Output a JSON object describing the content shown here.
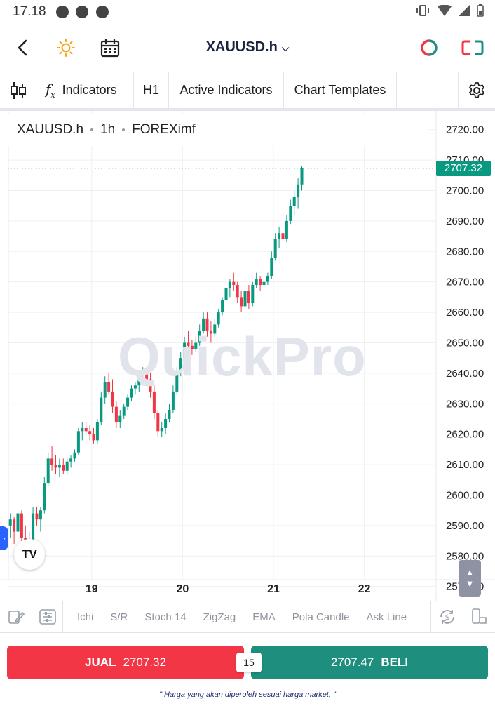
{
  "status_bar": {
    "time": "17.18"
  },
  "header": {
    "symbol": "XAUUSD.h",
    "icons": [
      "back-arrow-icon",
      "sun-icon",
      "calendar-icon",
      "chevron-down-icon",
      "trade-ring-icon",
      "layout-toggle-icon"
    ]
  },
  "toolbar": {
    "indicators_label": "Indicators",
    "timeframe": "H1",
    "active_indicators_label": "Active Indicators",
    "chart_templates_label": "Chart Templates"
  },
  "chart": {
    "legend": {
      "symbol": "XAUUSD.h",
      "interval": "1h",
      "source": "FOREXimf"
    },
    "watermark": "QuickPro",
    "current_price_label": "2707.32",
    "logo_text": "TV"
  },
  "indicator_bar": {
    "items": [
      "Ichi",
      "S/R",
      "Stoch 14",
      "ZigZag",
      "EMA",
      "Pola Candle",
      "Ask Line"
    ]
  },
  "trade": {
    "sell_label": "JUAL",
    "sell_price": "2707.32",
    "spread": "15",
    "buy_price": "2707.47",
    "buy_label": "BELI",
    "note": "\" Harga yang akan diperoleh sesuai harga market. \""
  },
  "colors": {
    "up": "#089981",
    "down": "#f23645",
    "sell": "#f23645",
    "buy": "#1e8f7e",
    "title": "#1a2340"
  },
  "chart_data": {
    "type": "candlestick",
    "ylim": [
      2566,
      2726
    ],
    "y_ticks": [
      "2720.00",
      "2710.00",
      "2700.00",
      "2690.00",
      "2680.00",
      "2670.00",
      "2660.00",
      "2650.00",
      "2640.00",
      "2630.00",
      "2620.00",
      "2610.00",
      "2600.00",
      "2590.00",
      "2580.00",
      "2570.00"
    ],
    "y_tick_values": [
      2720,
      2710,
      2700,
      2690,
      2680,
      2670,
      2660,
      2650,
      2640,
      2630,
      2620,
      2610,
      2600,
      2590,
      2580,
      2570
    ],
    "x_ticks": [
      "19",
      "20",
      "21",
      "22"
    ],
    "x_tick_bar_index": [
      22,
      46,
      70,
      94
    ],
    "last_price": 2707.32,
    "candles": [
      [
        2590,
        2594,
        2586,
        2592
      ],
      [
        2592,
        2593,
        2584,
        2588
      ],
      [
        2588,
        2596,
        2587,
        2594
      ],
      [
        2594,
        2595,
        2583,
        2586
      ],
      [
        2586,
        2590,
        2580,
        2582
      ],
      [
        2582,
        2588,
        2581,
        2585
      ],
      [
        2585,
        2596,
        2584,
        2594
      ],
      [
        2594,
        2596,
        2590,
        2592
      ],
      [
        2592,
        2596,
        2588,
        2595
      ],
      [
        2595,
        2606,
        2594,
        2604
      ],
      [
        2604,
        2614,
        2603,
        2612
      ],
      [
        2612,
        2616,
        2608,
        2610
      ],
      [
        2610,
        2613,
        2607,
        2609
      ],
      [
        2609,
        2612,
        2606,
        2610
      ],
      [
        2610,
        2612,
        2607,
        2608
      ],
      [
        2608,
        2612,
        2607,
        2611
      ],
      [
        2611,
        2613,
        2609,
        2612
      ],
      [
        2612,
        2615,
        2611,
        2614
      ],
      [
        2614,
        2622,
        2613,
        2621
      ],
      [
        2621,
        2624,
        2618,
        2622
      ],
      [
        2622,
        2624,
        2620,
        2621
      ],
      [
        2621,
        2623,
        2618,
        2620
      ],
      [
        2620,
        2622,
        2617,
        2618
      ],
      [
        2618,
        2625,
        2617,
        2624
      ],
      [
        2624,
        2634,
        2623,
        2632
      ],
      [
        2632,
        2639,
        2630,
        2637
      ],
      [
        2637,
        2640,
        2633,
        2634
      ],
      [
        2634,
        2638,
        2627,
        2629
      ],
      [
        2629,
        2631,
        2622,
        2624
      ],
      [
        2624,
        2628,
        2622,
        2626
      ],
      [
        2626,
        2630,
        2625,
        2629
      ],
      [
        2629,
        2633,
        2628,
        2632
      ],
      [
        2632,
        2636,
        2631,
        2635
      ],
      [
        2635,
        2637,
        2633,
        2636
      ],
      [
        2636,
        2640,
        2634,
        2638
      ],
      [
        2638,
        2642,
        2636,
        2640
      ],
      [
        2640,
        2641,
        2636,
        2638
      ],
      [
        2638,
        2640,
        2632,
        2634
      ],
      [
        2634,
        2636,
        2625,
        2627
      ],
      [
        2627,
        2628,
        2619,
        2621
      ],
      [
        2621,
        2624,
        2619,
        2622
      ],
      [
        2622,
        2627,
        2620,
        2625
      ],
      [
        2625,
        2630,
        2624,
        2628
      ],
      [
        2628,
        2636,
        2627,
        2634
      ],
      [
        2634,
        2642,
        2633,
        2640
      ],
      [
        2640,
        2647,
        2639,
        2645
      ],
      [
        2645,
        2652,
        2644,
        2650
      ],
      [
        2650,
        2654,
        2647,
        2649
      ],
      [
        2649,
        2651,
        2646,
        2648
      ],
      [
        2648,
        2652,
        2647,
        2650
      ],
      [
        2650,
        2656,
        2649,
        2654
      ],
      [
        2654,
        2660,
        2653,
        2658
      ],
      [
        2658,
        2660,
        2652,
        2654
      ],
      [
        2654,
        2657,
        2650,
        2653
      ],
      [
        2653,
        2658,
        2652,
        2656
      ],
      [
        2656,
        2661,
        2655,
        2660
      ],
      [
        2660,
        2665,
        2659,
        2664
      ],
      [
        2664,
        2670,
        2663,
        2668
      ],
      [
        2668,
        2671,
        2665,
        2670
      ],
      [
        2670,
        2673,
        2667,
        2669
      ],
      [
        2669,
        2670,
        2663,
        2665
      ],
      [
        2665,
        2667,
        2660,
        2662
      ],
      [
        2662,
        2668,
        2661,
        2667
      ],
      [
        2667,
        2669,
        2661,
        2663
      ],
      [
        2663,
        2670,
        2662,
        2669
      ],
      [
        2669,
        2673,
        2668,
        2671
      ],
      [
        2671,
        2672,
        2667,
        2669
      ],
      [
        2669,
        2671,
        2668,
        2670
      ],
      [
        2670,
        2673,
        2669,
        2672
      ],
      [
        2672,
        2680,
        2671,
        2678
      ],
      [
        2678,
        2686,
        2677,
        2684
      ],
      [
        2684,
        2688,
        2681,
        2686
      ],
      [
        2686,
        2689,
        2682,
        2684
      ],
      [
        2684,
        2692,
        2683,
        2690
      ],
      [
        2690,
        2697,
        2689,
        2695
      ],
      [
        2695,
        2700,
        2692,
        2698
      ],
      [
        2698,
        2704,
        2694,
        2702
      ],
      [
        2702,
        2708,
        2700,
        2707.32
      ]
    ]
  }
}
